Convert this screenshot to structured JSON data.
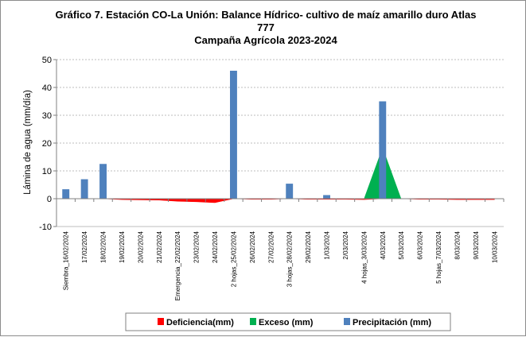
{
  "chart_data": {
    "type": "bar",
    "title_lines": [
      "Gráfico 7. Estación CO-La Unión: Balance Hídrico- cultivo de maíz amarillo duro Atlas",
      "777",
      "Campaña Agrícola 2023-2024"
    ],
    "ylabel": "Lámina de agua (mm/día)",
    "xlabel": "",
    "ylim": [
      -10,
      50
    ],
    "yticks": [
      -10,
      0,
      10,
      20,
      30,
      40,
      50
    ],
    "grid": true,
    "legend_position": "bottom",
    "categories": [
      "Siembra_16/02/2024",
      "17/02/2024",
      "18/02/2024",
      "19/02/2024",
      "20/02/2024",
      "21/02/2024",
      "Emergencia_22/02/2024",
      "23/02/2024",
      "24/02/2024",
      "2 hojas_25/02/2024",
      "26/02/2024",
      "27/02/2024",
      "3 hojas_28/02/2024",
      "29/02/2024",
      "1/03/2024",
      "2/03/2024",
      "4 hojas_3/03/2024",
      "4/03/2024",
      "5/03/2024",
      "6/03/2024",
      "5 hojas_7/03/2024",
      "8/03/2024",
      "9/03/2024",
      "10/03/2024"
    ],
    "series": [
      {
        "name": "Deficiencia(mm)",
        "type": "area",
        "color": "#ff0000",
        "values": [
          0,
          0,
          0,
          -0.3,
          -0.4,
          -0.5,
          -0.9,
          -1.1,
          -1.4,
          0,
          -0.2,
          -0.2,
          0,
          -0.2,
          -0.2,
          -0.2,
          -0.3,
          0,
          0,
          -0.2,
          -0.2,
          -0.3,
          -0.3,
          -0.3
        ]
      },
      {
        "name": "Exceso (mm)",
        "type": "area",
        "color": "#00b050",
        "values": [
          0,
          0,
          0,
          0,
          0,
          0,
          0,
          0,
          0,
          0,
          0,
          0,
          0,
          0,
          0,
          0,
          0,
          18.5,
          0,
          0,
          0,
          0,
          0,
          0
        ]
      },
      {
        "name": "Precipitación (mm)",
        "type": "bar",
        "color": "#4f81bd",
        "values": [
          3.4,
          7.0,
          12.5,
          0,
          0,
          0,
          0,
          0,
          0,
          46.0,
          0,
          0,
          5.4,
          0,
          1.3,
          0,
          0,
          35.0,
          0,
          0,
          0,
          0,
          0,
          0
        ]
      }
    ],
    "colors": {
      "grid": "#a6a6a6",
      "axis": "#808080"
    }
  }
}
